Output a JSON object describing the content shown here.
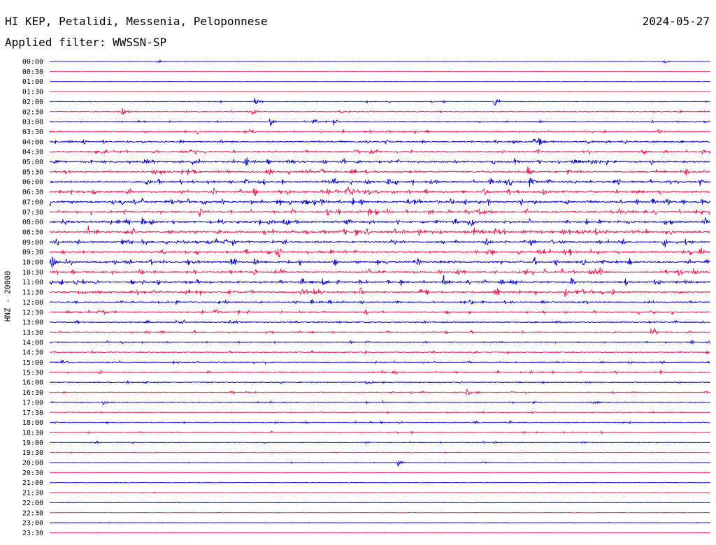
{
  "header": {
    "station": "HI KEP, Petalidi, Messenia, Peloponnese",
    "date": "2024-05-27",
    "filter": "Applied filter: WWSSN-SP"
  },
  "colors": {
    "odd_trace": "#0000cc",
    "even_trace": "#e8194d",
    "text": "#000000",
    "background": "#ffffff"
  },
  "chart_data": {
    "type": "line",
    "title": "",
    "ylabel": "HNZ - 20000",
    "x_units": "minutes",
    "x_range": [
      0,
      30
    ],
    "row_labels": [
      "00:00",
      "00:30",
      "01:00",
      "01:30",
      "02:00",
      "02:30",
      "03:00",
      "03:30",
      "04:00",
      "04:30",
      "05:00",
      "05:30",
      "06:00",
      "06:30",
      "07:00",
      "07:30",
      "08:00",
      "08:30",
      "09:00",
      "09:30",
      "10:00",
      "10:30",
      "11:00",
      "11:30",
      "12:00",
      "12:30",
      "13:00",
      "13:30",
      "14:00",
      "14:30",
      "15:00",
      "15:30",
      "16:00",
      "16:30",
      "17:00",
      "17:30",
      "18:00",
      "18:30",
      "19:00",
      "19:30",
      "20:00",
      "20:30",
      "21:00",
      "21:30",
      "22:00",
      "22:30",
      "23:00",
      "23:30"
    ],
    "activity_level": [
      0.02,
      0.01,
      0.02,
      0.03,
      0.25,
      0.3,
      0.35,
      0.45,
      0.6,
      0.65,
      0.8,
      0.75,
      0.85,
      0.85,
      0.9,
      0.85,
      0.85,
      0.9,
      0.85,
      0.8,
      0.85,
      0.8,
      0.8,
      0.8,
      0.55,
      0.55,
      0.45,
      0.45,
      0.4,
      0.35,
      0.4,
      0.4,
      0.35,
      0.35,
      0.3,
      0.3,
      0.3,
      0.3,
      0.25,
      0.15,
      0.15,
      0.1,
      0.12,
      0.1,
      0.1,
      0.08,
      0.05,
      0.1
    ],
    "notable_events": [
      {
        "row": 0,
        "minute": 4.9,
        "amp": 0.5
      },
      {
        "row": 0,
        "minute": 27.9,
        "amp": 0.4
      },
      {
        "row": 4,
        "minute": 20.2,
        "amp": 1.2
      },
      {
        "row": 4,
        "minute": 9.3,
        "amp": 1.0
      },
      {
        "row": 5,
        "minute": 3.3,
        "amp": 1.3
      },
      {
        "row": 5,
        "minute": 9.2,
        "amp": 1.1
      },
      {
        "row": 6,
        "minute": 10.0,
        "amp": 1.2
      },
      {
        "row": 6,
        "minute": 12.9,
        "amp": 1.0
      },
      {
        "row": 7,
        "minute": 9.1,
        "amp": 0.9
      },
      {
        "row": 7,
        "minute": 27.6,
        "amp": 0.9
      },
      {
        "row": 8,
        "minute": 22.2,
        "amp": 1.2
      },
      {
        "row": 10,
        "minute": 0.2,
        "amp": 1.0
      },
      {
        "row": 10,
        "minute": 21.1,
        "amp": 1.2
      },
      {
        "row": 11,
        "minute": 21.7,
        "amp": 1.3
      },
      {
        "row": 12,
        "minute": 21.8,
        "amp": 1.3
      },
      {
        "row": 12,
        "minute": 29.5,
        "amp": 1.0
      },
      {
        "row": 13,
        "minute": 13.5,
        "amp": 1.0
      },
      {
        "row": 14,
        "minute": 12.3,
        "amp": 1.3
      },
      {
        "row": 14,
        "minute": 29.6,
        "amp": 1.0
      },
      {
        "row": 15,
        "minute": 6.8,
        "amp": 0.9
      },
      {
        "row": 16,
        "minute": 4.2,
        "amp": 0.9
      },
      {
        "row": 16,
        "minute": 29.7,
        "amp": 1.0
      },
      {
        "row": 17,
        "minute": 13.9,
        "amp": 1.0
      },
      {
        "row": 17,
        "minute": 24.8,
        "amp": 1.0
      },
      {
        "row": 18,
        "minute": 8.3,
        "amp": 1.0
      },
      {
        "row": 18,
        "minute": 19.8,
        "amp": 1.0
      },
      {
        "row": 19,
        "minute": 29.5,
        "amp": 1.0
      },
      {
        "row": 20,
        "minute": 0.1,
        "amp": 1.0
      },
      {
        "row": 20,
        "minute": 9.3,
        "amp": 0.9
      },
      {
        "row": 21,
        "minute": 29.2,
        "amp": 1.1
      },
      {
        "row": 22,
        "minute": 12.4,
        "amp": 1.0
      },
      {
        "row": 22,
        "minute": 17.9,
        "amp": 0.9
      },
      {
        "row": 23,
        "minute": 12.2,
        "amp": 1.3
      },
      {
        "row": 23,
        "minute": 23.4,
        "amp": 1.1
      },
      {
        "row": 25,
        "minute": 2.4,
        "amp": 1.0
      },
      {
        "row": 27,
        "minute": 27.3,
        "amp": 0.9
      },
      {
        "row": 33,
        "minute": 18.9,
        "amp": 1.4
      },
      {
        "row": 34,
        "minute": 2.4,
        "amp": 0.8
      },
      {
        "row": 40,
        "minute": 15.8,
        "amp": 1.2
      }
    ]
  }
}
